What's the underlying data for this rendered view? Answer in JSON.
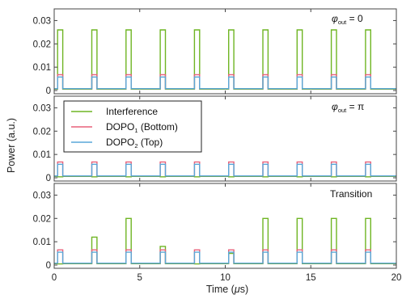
{
  "chart_data": {
    "type": "line",
    "ylabel": "Power (a.u.)",
    "xlabel": "Time (μs)",
    "xlim": [
      0,
      20
    ],
    "ylim": [
      0,
      0.035
    ],
    "x_ticks": [
      "0",
      "5",
      "10",
      "15",
      "20"
    ],
    "y_ticks": [
      "0",
      "0.01",
      "0.02",
      "0.03"
    ],
    "grid": false,
    "legend_placement": "upper-left of middle panel",
    "pulse_period_us": 2.0,
    "pulse_starts_us": [
      0.2,
      2.2,
      4.2,
      6.2,
      8.2,
      10.2,
      12.2,
      14.2,
      16.2,
      18.2
    ],
    "pulse_width_us": 0.3,
    "series": [
      {
        "name": "Interference",
        "color": "#6fb523",
        "key": "interference"
      },
      {
        "name": "DOPO₁ (Bottom)",
        "color": "#e8617a",
        "key": "dopo1"
      },
      {
        "name": "DOPO₂ (Top)",
        "color": "#59a7d8",
        "key": "dopo2"
      }
    ],
    "panels": [
      {
        "annotation": "φout = 0",
        "interference": [
          0.026,
          0.026,
          0.026,
          0.026,
          0.026,
          0.026,
          0.026,
          0.026,
          0.026,
          0.026
        ],
        "dopo1": [
          0.0068,
          0.0068,
          0.0068,
          0.0068,
          0.0068,
          0.0068,
          0.0068,
          0.0068,
          0.0068,
          0.0068
        ],
        "dopo2": [
          0.0058,
          0.0058,
          0.0058,
          0.0058,
          0.0058,
          0.0058,
          0.0058,
          0.0058,
          0.0058,
          0.0058
        ]
      },
      {
        "annotation": "φout = π",
        "interference": [
          0.0004,
          0.0004,
          0.0004,
          0.0004,
          0.0004,
          0.0004,
          0.0004,
          0.0004,
          0.0004,
          0.0004
        ],
        "dopo1": [
          0.0068,
          0.0068,
          0.0068,
          0.0068,
          0.0068,
          0.0068,
          0.0068,
          0.0068,
          0.0068,
          0.0068
        ],
        "dopo2": [
          0.0058,
          0.0058,
          0.0058,
          0.0058,
          0.0058,
          0.0058,
          0.0058,
          0.0058,
          0.0058,
          0.0058
        ]
      },
      {
        "annotation": "Transition",
        "interference": [
          0.0005,
          0.012,
          0.02,
          0.008,
          0.0005,
          0.005,
          0.02,
          0.02,
          0.02,
          0.02
        ],
        "dopo1": [
          0.0065,
          0.0065,
          0.0065,
          0.0065,
          0.0065,
          0.0065,
          0.0065,
          0.0065,
          0.0065,
          0.0065
        ],
        "dopo2": [
          0.0055,
          0.0055,
          0.0055,
          0.0055,
          0.0055,
          0.0055,
          0.0055,
          0.0055,
          0.0055,
          0.0055
        ]
      }
    ]
  },
  "labels": {
    "ylabel": "Power (a.u.)",
    "xlabel_prefix": "Time (",
    "xlabel_unit_mu": "μ",
    "xlabel_suffix": "s)",
    "panel1_phi": "φ",
    "panel1_sub": "out",
    "panel1_rest": " = 0",
    "panel2_phi": "φ",
    "panel2_sub": "out",
    "panel2_rest": " = π",
    "panel3_text": "Transition",
    "legend_interference": "Interference",
    "legend_dopo1_main": "DOPO",
    "legend_dopo1_sub": "1",
    "legend_dopo1_rest": " (Bottom)",
    "legend_dopo2_main": "DOPO",
    "legend_dopo2_sub": "2",
    "legend_dopo2_rest": " (Top)"
  }
}
